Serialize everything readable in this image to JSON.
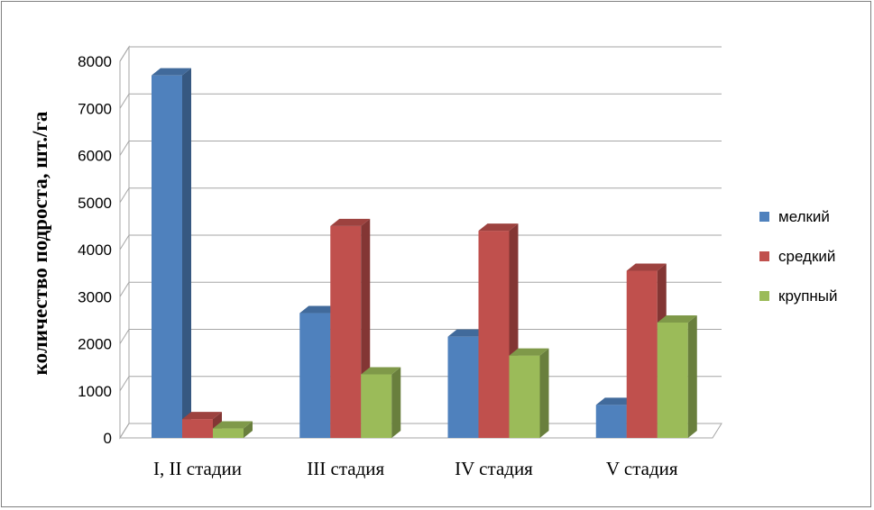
{
  "chart_data": {
    "type": "bar",
    "title": "",
    "xlabel": "",
    "ylabel": "количество подроста, шт./га",
    "categories": [
      "I, II стадии",
      "III стадия",
      "IV стадия",
      "V стадия"
    ],
    "series": [
      {
        "name": "мелкий",
        "values": [
          7700,
          2650,
          2150,
          700
        ],
        "color": "#4f81bd"
      },
      {
        "name": "средкий",
        "values": [
          400,
          4500,
          4400,
          3550
        ],
        "color": "#c0504d"
      },
      {
        "name": "крупный",
        "values": [
          200,
          1350,
          1750,
          2450
        ],
        "color": "#9bbb59"
      }
    ],
    "ylim": [
      0,
      8000
    ],
    "yticks": [
      "0",
      "1000",
      "2000",
      "3000",
      "4000",
      "5000",
      "6000",
      "7000",
      "8000"
    ],
    "grid": true,
    "legend_position": "right",
    "style": "3d-clustered-column"
  }
}
